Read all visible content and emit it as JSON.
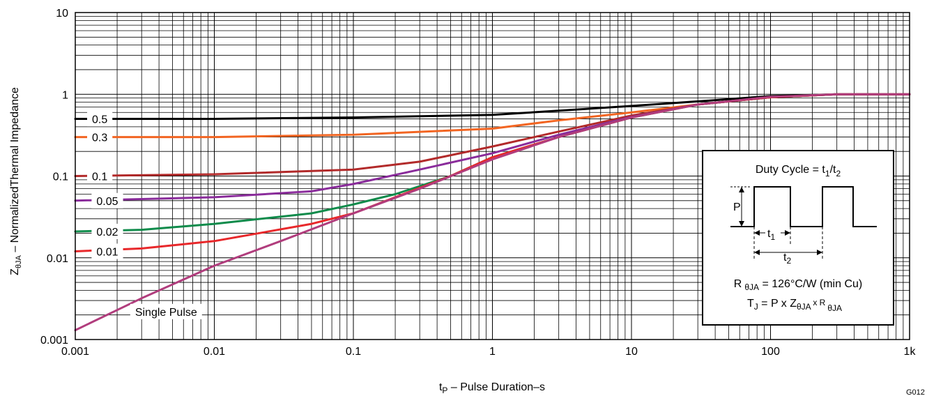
{
  "chart_data": {
    "type": "line",
    "x_scale": "log",
    "y_scale": "log",
    "xlim": [
      0.001,
      1000
    ],
    "ylim": [
      0.001,
      10
    ],
    "grid": true,
    "xlabel_main": "t",
    "xlabel_sub": "P",
    "xlabel_rest": " – Pulse Duration–s",
    "ylabel_main": "Z",
    "ylabel_sub": "θJA",
    "ylabel_rest": " – NormalizedThermal Impedance",
    "x_ticks": [
      {
        "value": 0.001,
        "label": "0.001"
      },
      {
        "value": 0.01,
        "label": "0.01"
      },
      {
        "value": 0.1,
        "label": "0.1"
      },
      {
        "value": 1,
        "label": "1"
      },
      {
        "value": 10,
        "label": "10"
      },
      {
        "value": 100,
        "label": "100"
      },
      {
        "value": 1000,
        "label": "1k"
      }
    ],
    "y_ticks": [
      {
        "value": 0.001,
        "label": "0.001"
      },
      {
        "value": 0.01,
        "label": "0.01"
      },
      {
        "value": 0.1,
        "label": "0.1"
      },
      {
        "value": 1,
        "label": "1"
      },
      {
        "value": 10,
        "label": "10"
      }
    ],
    "series": [
      {
        "name": "0.5",
        "color": "#000000",
        "points": [
          [
            0.001,
            0.5
          ],
          [
            0.01,
            0.5
          ],
          [
            0.1,
            0.52
          ],
          [
            1,
            0.56
          ],
          [
            3,
            0.63
          ],
          [
            10,
            0.72
          ],
          [
            30,
            0.82
          ],
          [
            100,
            0.95
          ],
          [
            300,
            1.0
          ],
          [
            1000,
            1.0
          ]
        ]
      },
      {
        "name": "0.3",
        "color": "#f26522",
        "points": [
          [
            0.001,
            0.3
          ],
          [
            0.01,
            0.3
          ],
          [
            0.1,
            0.32
          ],
          [
            1,
            0.38
          ],
          [
            3,
            0.48
          ],
          [
            10,
            0.6
          ],
          [
            30,
            0.75
          ],
          [
            100,
            0.92
          ],
          [
            300,
            1.0
          ],
          [
            1000,
            1.0
          ]
        ]
      },
      {
        "name": "0.1",
        "color": "#b22a2a",
        "points": [
          [
            0.001,
            0.1
          ],
          [
            0.01,
            0.105
          ],
          [
            0.1,
            0.12
          ],
          [
            0.3,
            0.15
          ],
          [
            1,
            0.23
          ],
          [
            3,
            0.35
          ],
          [
            10,
            0.55
          ],
          [
            30,
            0.75
          ],
          [
            100,
            0.92
          ],
          [
            300,
            1.0
          ],
          [
            1000,
            1.0
          ]
        ]
      },
      {
        "name": "0.05",
        "color": "#8a2c9b",
        "points": [
          [
            0.001,
            0.05
          ],
          [
            0.01,
            0.055
          ],
          [
            0.05,
            0.065
          ],
          [
            0.1,
            0.08
          ],
          [
            0.3,
            0.12
          ],
          [
            1,
            0.19
          ],
          [
            3,
            0.32
          ],
          [
            10,
            0.53
          ],
          [
            30,
            0.75
          ],
          [
            100,
            0.92
          ],
          [
            300,
            1.0
          ],
          [
            1000,
            1.0
          ]
        ]
      },
      {
        "name": "0.02",
        "color": "#0f8b4b",
        "points": [
          [
            0.001,
            0.021
          ],
          [
            0.003,
            0.022
          ],
          [
            0.01,
            0.026
          ],
          [
            0.05,
            0.035
          ],
          [
            0.1,
            0.045
          ],
          [
            0.2,
            0.06
          ],
          [
            0.5,
            0.1
          ],
          [
            1,
            0.17
          ],
          [
            3,
            0.3
          ],
          [
            10,
            0.52
          ],
          [
            30,
            0.75
          ],
          [
            100,
            0.92
          ],
          [
            300,
            1.0
          ],
          [
            1000,
            1.0
          ]
        ]
      },
      {
        "name": "0.01",
        "color": "#e8282b",
        "points": [
          [
            0.001,
            0.012
          ],
          [
            0.003,
            0.013
          ],
          [
            0.01,
            0.016
          ],
          [
            0.05,
            0.026
          ],
          [
            0.1,
            0.035
          ],
          [
            0.2,
            0.055
          ],
          [
            0.5,
            0.1
          ],
          [
            1,
            0.17
          ],
          [
            3,
            0.3
          ],
          [
            10,
            0.52
          ],
          [
            30,
            0.75
          ],
          [
            100,
            0.92
          ],
          [
            300,
            1.0
          ],
          [
            1000,
            1.0
          ]
        ]
      },
      {
        "name": "Single Pulse",
        "color": "#b13d7d",
        "points": [
          [
            0.001,
            0.0013
          ],
          [
            0.003,
            0.0032
          ],
          [
            0.01,
            0.008
          ],
          [
            0.03,
            0.016
          ],
          [
            0.1,
            0.035
          ],
          [
            0.3,
            0.07
          ],
          [
            1,
            0.16
          ],
          [
            3,
            0.3
          ],
          [
            10,
            0.52
          ],
          [
            30,
            0.75
          ],
          [
            100,
            0.93
          ],
          [
            300,
            1.0
          ],
          [
            1000,
            1.0
          ]
        ]
      }
    ],
    "curve_labels": [
      {
        "text": "0.5",
        "x": 0.0015,
        "y": 0.5
      },
      {
        "text": "0.3",
        "x": 0.0015,
        "y": 0.3
      },
      {
        "text": "0.1",
        "x": 0.0015,
        "y": 0.1
      },
      {
        "text": "0.05",
        "x": 0.0017,
        "y": 0.05
      },
      {
        "text": "0.02",
        "x": 0.0017,
        "y": 0.021
      },
      {
        "text": "0.01",
        "x": 0.0017,
        "y": 0.012
      },
      {
        "text": "Single Pulse",
        "x": 0.0045,
        "y": 0.0022
      }
    ],
    "inset": {
      "title_main": "Duty Cycle = t",
      "title_sub1": "1",
      "title_slash": "/t",
      "title_sub2": "2",
      "p_label": "P",
      "t1_main": "t",
      "t1_sub": "1",
      "t2_main": "t",
      "t2_sub": "2",
      "line1_a": "R",
      "line1_sub": "θJA",
      "line1_b": " = 126°C/W (min Cu)",
      "line2_a": "T",
      "line2_sub1": "J",
      "line2_b": " = P x Z",
      "line2_sub2": "θJA",
      "line2_c": " x R",
      "line2_sub3": "θJA"
    },
    "figure_code": "G012"
  }
}
